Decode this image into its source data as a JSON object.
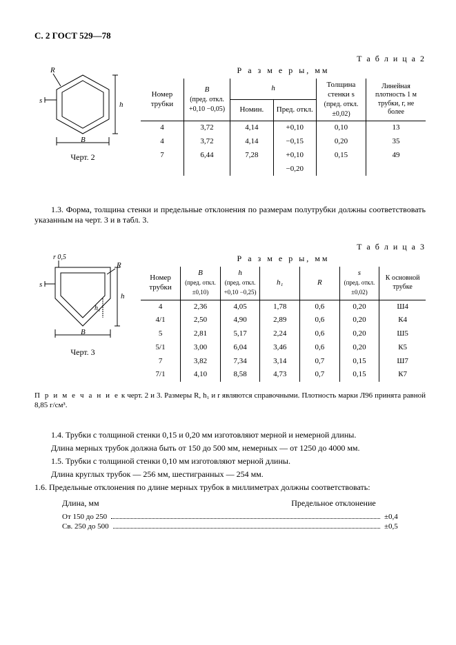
{
  "header": "С. 2 ГОСТ 529—78",
  "table2": {
    "label": "Т а б л и ц а  2",
    "caption": "Р а з м е р ы, мм",
    "col_tube": "Номер трубки",
    "col_B": "B",
    "col_B_tol": "(пред. откл. +0,10 −0,05)",
    "col_h": "h",
    "col_h_nom": "Номин.",
    "col_h_tol": "Пред. откл.",
    "col_s": "Толщина стенки s",
    "col_s_tol": "(пред. откл. ±0,02)",
    "col_dens": "Линейная плотность 1 м трубки, г, не более",
    "rows": [
      {
        "n": "4",
        "B": "3,72",
        "hnom": "4,14",
        "htol": "+0,10",
        "s": "0,10",
        "d": "13"
      },
      {
        "n": "4",
        "B": "3,72",
        "hnom": "4,14",
        "htol": "−0,15",
        "s": "0,20",
        "d": "35"
      },
      {
        "n": "7",
        "B": "6,44",
        "hnom": "7,28",
        "htol": "+0,10",
        "s": "0,15",
        "d": "49"
      },
      {
        "n": "",
        "B": "",
        "hnom": "",
        "htol": "−0,20",
        "s": "",
        "d": ""
      }
    ]
  },
  "table3": {
    "label": "Т а б л и ц а  3",
    "caption": "Р а з м е р ы, мм",
    "col_tube": "Номер трубки",
    "col_B": "B",
    "col_B_tol": "(пред. откл. ±0,10)",
    "col_h": "h",
    "col_h_tol": "(пред. откл. +0,10 −0,25)",
    "col_h1": "h₁",
    "col_R": "R",
    "col_s": "s",
    "col_s_tol": "(пред. откл. ±0,02)",
    "col_to": "К основной трубке",
    "rows": [
      {
        "n": "4",
        "B": "2,36",
        "h": "4,05",
        "h1": "1,78",
        "R": "0,6",
        "s": "0,20",
        "to": "Ш4"
      },
      {
        "n": "4/1",
        "B": "2,50",
        "h": "4,90",
        "h1": "2,89",
        "R": "0,6",
        "s": "0,20",
        "to": "К4"
      },
      {
        "n": "5",
        "B": "2,81",
        "h": "5,17",
        "h1": "2,24",
        "R": "0,6",
        "s": "0,20",
        "to": "Ш5"
      },
      {
        "n": "5/1",
        "B": "3,00",
        "h": "6,04",
        "h1": "3,46",
        "R": "0,6",
        "s": "0,20",
        "to": "К5"
      },
      {
        "n": "7",
        "B": "3,82",
        "h": "7,34",
        "h1": "3,14",
        "R": "0,7",
        "s": "0,15",
        "to": "Ш7"
      },
      {
        "n": "7/1",
        "B": "4,10",
        "h": "8,58",
        "h1": "4,73",
        "R": "0,7",
        "s": "0,15",
        "to": "К7"
      }
    ]
  },
  "fig2_label_R": "R",
  "fig2_label_s": "s",
  "fig2_label_h": "h",
  "fig2_label_B": "B",
  "fig2_caption": "Черт. 2",
  "fig3_label_r": "r 0,5",
  "fig3_label_R": "R",
  "fig3_label_s": "s",
  "fig3_label_h1": "h₁",
  "fig3_label_h": "h",
  "fig3_label_B": "B",
  "fig3_caption": "Черт. 3",
  "para_1_3": "1.3. Форма, толщина стенки и предельные отклонения по размерам полутрубки должны со­ответствовать указанным на черт. 3 и в табл. 3.",
  "note_head": "П р и м е ч а н и е",
  "note_body": " к черт. 2 и 3. Размеры R, h₁ и r являются справочными. Плотность марки Л96 принята равной 8,85 г/см³.",
  "para_1_4a": "1.4. Трубки с толщиной стенки 0,15 и 0,20 мм изготовляют мерной и немерной длины.",
  "para_1_4b": "Длина мерных трубок должна быть от 150 до 500 мм, немерных — от 1250 до 4000 мм.",
  "para_1_5a": "1.5. Трубки с толщиной стенки 0,10 мм изготовляют мерной длины.",
  "para_1_5b": "Длина круглых трубок — 256 мм, шестигранных — 254 мм.",
  "para_1_6": "1.6. Предельные отклонения по длине мерных трубок в миллиметрах должны соответ­ство­вать:",
  "dev_head_l": "Длина, мм",
  "dev_head_r": "Предельное отклонение",
  "dev_rows": [
    {
      "l": "От 150 до 250",
      "v": "±0,4"
    },
    {
      "l": "Св. 250 до 500",
      "v": "±0,5"
    }
  ]
}
